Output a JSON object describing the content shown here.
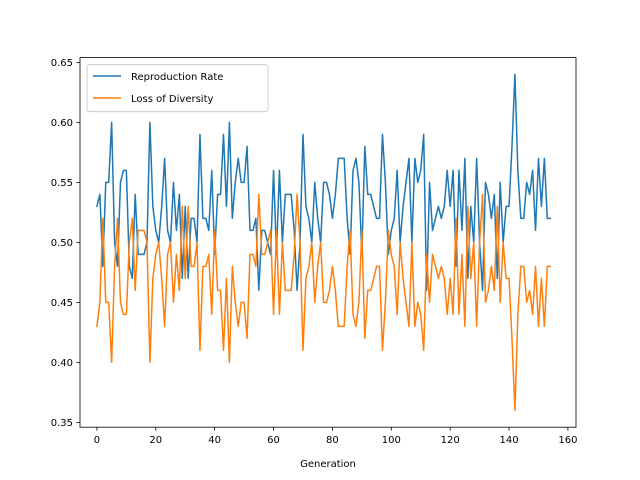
{
  "chart_data": {
    "type": "line",
    "title": "",
    "xlabel": "Generation",
    "ylabel": "",
    "xlim": [
      -5.75,
      162.75
    ],
    "ylim": [
      0.346,
      0.654
    ],
    "xticks": [
      0,
      20,
      40,
      60,
      80,
      100,
      120,
      140,
      160
    ],
    "xtick_labels": [
      "0",
      "20",
      "40",
      "60",
      "80",
      "100",
      "120",
      "140",
      "160"
    ],
    "yticks": [
      0.35,
      0.4,
      0.45,
      0.5,
      0.55,
      0.6,
      0.65
    ],
    "ytick_labels": [
      "0.35",
      "0.40",
      "0.45",
      "0.50",
      "0.55",
      "0.60",
      "0.65"
    ],
    "grid": false,
    "legend": "upper-left",
    "x_start": 0,
    "series": [
      {
        "name": "Reproduction Rate",
        "color": "#1f77b4",
        "values": [
          0.53,
          0.54,
          0.48,
          0.55,
          0.55,
          0.6,
          0.5,
          0.48,
          0.55,
          0.56,
          0.56,
          0.48,
          0.47,
          0.54,
          0.49,
          0.49,
          0.49,
          0.5,
          0.6,
          0.53,
          0.51,
          0.5,
          0.53,
          0.57,
          0.51,
          0.5,
          0.55,
          0.51,
          0.54,
          0.47,
          0.53,
          0.47,
          0.52,
          0.52,
          0.5,
          0.59,
          0.52,
          0.52,
          0.51,
          0.56,
          0.49,
          0.54,
          0.54,
          0.59,
          0.53,
          0.6,
          0.52,
          0.55,
          0.57,
          0.55,
          0.55,
          0.58,
          0.51,
          0.51,
          0.52,
          0.46,
          0.51,
          0.51,
          0.5,
          0.49,
          0.56,
          0.49,
          0.56,
          0.5,
          0.54,
          0.54,
          0.54,
          0.51,
          0.46,
          0.5,
          0.59,
          0.53,
          0.52,
          0.5,
          0.55,
          0.52,
          0.5,
          0.55,
          0.55,
          0.54,
          0.52,
          0.54,
          0.57,
          0.57,
          0.57,
          0.52,
          0.49,
          0.56,
          0.57,
          0.55,
          0.49,
          0.58,
          0.54,
          0.54,
          0.53,
          0.52,
          0.52,
          0.59,
          0.55,
          0.49,
          0.51,
          0.52,
          0.56,
          0.5,
          0.53,
          0.55,
          0.57,
          0.5,
          0.57,
          0.55,
          0.56,
          0.59,
          0.46,
          0.55,
          0.51,
          0.52,
          0.53,
          0.52,
          0.53,
          0.56,
          0.53,
          0.56,
          0.48,
          0.56,
          0.51,
          0.57,
          0.47,
          0.53,
          0.5,
          0.57,
          0.5,
          0.46,
          0.55,
          0.54,
          0.52,
          0.54,
          0.47,
          0.55,
          0.5,
          0.53,
          0.53,
          0.58,
          0.64,
          0.56,
          0.52,
          0.52,
          0.55,
          0.54,
          0.56,
          0.51,
          0.57,
          0.53,
          0.57,
          0.52,
          0.52
        ]
      },
      {
        "name": "Loss of Diversity",
        "color": "#ff7f0e",
        "values": [
          0.43,
          0.45,
          0.52,
          0.45,
          0.45,
          0.4,
          0.48,
          0.52,
          0.45,
          0.44,
          0.44,
          0.5,
          0.52,
          0.46,
          0.51,
          0.51,
          0.51,
          0.5,
          0.4,
          0.47,
          0.49,
          0.5,
          0.47,
          0.43,
          0.49,
          0.5,
          0.45,
          0.49,
          0.46,
          0.53,
          0.47,
          0.53,
          0.48,
          0.48,
          0.5,
          0.41,
          0.48,
          0.48,
          0.49,
          0.44,
          0.51,
          0.46,
          0.46,
          0.41,
          0.47,
          0.4,
          0.48,
          0.45,
          0.43,
          0.45,
          0.45,
          0.42,
          0.49,
          0.49,
          0.48,
          0.54,
          0.49,
          0.49,
          0.5,
          0.51,
          0.44,
          0.51,
          0.44,
          0.5,
          0.46,
          0.46,
          0.46,
          0.49,
          0.54,
          0.5,
          0.41,
          0.47,
          0.48,
          0.5,
          0.45,
          0.48,
          0.5,
          0.45,
          0.45,
          0.46,
          0.48,
          0.46,
          0.43,
          0.43,
          0.43,
          0.48,
          0.51,
          0.44,
          0.43,
          0.45,
          0.51,
          0.42,
          0.46,
          0.46,
          0.47,
          0.48,
          0.48,
          0.41,
          0.45,
          0.51,
          0.49,
          0.48,
          0.44,
          0.5,
          0.47,
          0.45,
          0.43,
          0.5,
          0.43,
          0.45,
          0.44,
          0.41,
          0.49,
          0.45,
          0.49,
          0.48,
          0.47,
          0.48,
          0.47,
          0.44,
          0.47,
          0.44,
          0.52,
          0.44,
          0.49,
          0.43,
          0.53,
          0.47,
          0.5,
          0.43,
          0.5,
          0.54,
          0.45,
          0.46,
          0.48,
          0.46,
          0.53,
          0.45,
          0.5,
          0.47,
          0.47,
          0.42,
          0.36,
          0.44,
          0.48,
          0.48,
          0.45,
          0.46,
          0.44,
          0.48,
          0.43,
          0.47,
          0.43,
          0.48,
          0.48
        ]
      }
    ]
  }
}
